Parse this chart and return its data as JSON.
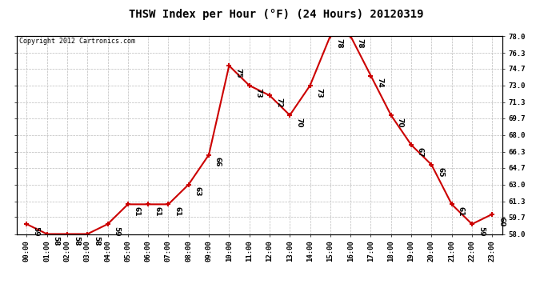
{
  "title": "THSW Index per Hour (°F) (24 Hours) 20120319",
  "copyright": "Copyright 2012 Cartronics.com",
  "hours": [
    0,
    1,
    2,
    3,
    4,
    5,
    6,
    7,
    8,
    9,
    10,
    11,
    12,
    13,
    14,
    15,
    16,
    17,
    18,
    19,
    20,
    21,
    22,
    23
  ],
  "values": [
    59,
    58,
    58,
    58,
    59,
    61,
    61,
    61,
    63,
    66,
    75,
    73,
    72,
    70,
    73,
    78,
    78,
    74,
    70,
    67,
    65,
    61,
    59,
    60
  ],
  "xlabels": [
    "00:00",
    "01:00",
    "02:00",
    "03:00",
    "04:00",
    "05:00",
    "06:00",
    "07:00",
    "08:00",
    "09:00",
    "10:00",
    "11:00",
    "12:00",
    "13:00",
    "14:00",
    "15:00",
    "16:00",
    "17:00",
    "18:00",
    "19:00",
    "20:00",
    "21:00",
    "22:00",
    "23:00"
  ],
  "ylim": [
    58.0,
    78.0
  ],
  "yticks": [
    58.0,
    59.7,
    61.3,
    63.0,
    64.7,
    66.3,
    68.0,
    69.7,
    71.3,
    73.0,
    74.7,
    76.3,
    78.0
  ],
  "line_color": "#cc0000",
  "marker_color": "#cc0000",
  "bg_color": "#ffffff",
  "plot_bg_color": "#ffffff",
  "grid_color": "#bbbbbb",
  "title_fontsize": 10,
  "label_fontsize": 6.5,
  "annotation_fontsize": 6.5,
  "copyright_fontsize": 6
}
